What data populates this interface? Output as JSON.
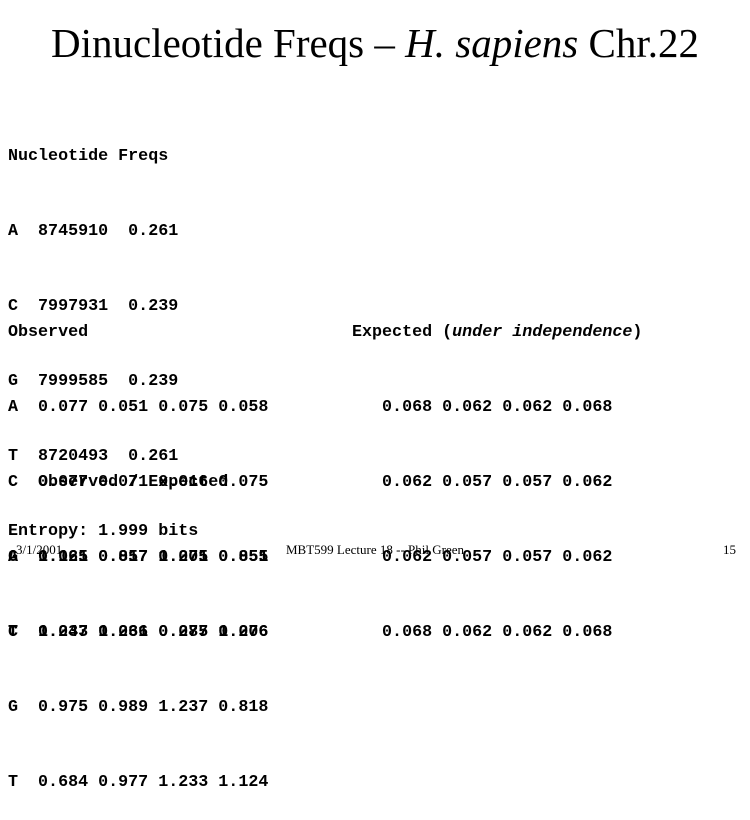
{
  "title": {
    "prefix": "Dinucleotide Freqs – ",
    "species": "H. sapiens",
    "suffix": " Chr.22"
  },
  "nucleotide_freqs": {
    "header": "Nucleotide Freqs",
    "rows": [
      "A  8745910  0.261",
      "C  7997931  0.239",
      "G  7999585  0.239",
      "T  8720493  0.261"
    ],
    "entropy": "Entropy: 1.999 bits"
  },
  "observed": {
    "header": "Observed",
    "rows": [
      "A  0.077 0.051 0.075 0.058",
      "C  0.077 0.071 0.016 0.075",
      "G  0.061 0.057 0.071 0.051",
      "T  0.047 0.061 0.077 0.076"
    ]
  },
  "expected": {
    "header_prefix": "Expected (",
    "header_italic": "under independence",
    "header_suffix": ")",
    "rows": [
      "   0.068 0.062 0.062 0.068",
      "   0.062 0.057 0.057 0.062",
      "   0.062 0.057 0.057 0.062",
      "   0.068 0.062 0.062 0.068"
    ]
  },
  "ratio": {
    "header": "   Observed / Expected",
    "rows": [
      "A  1.125 0.817 1.205 0.855",
      "C  1.233 1.236 0.285 1.206",
      "G  0.975 0.989 1.237 0.818",
      "T  0.684 0.977 1.233 1.124"
    ]
  },
  "footer": {
    "date": "3/1/2001",
    "lecture": "MBT599 Lecture 18 -- Phil Green",
    "page": "15"
  }
}
